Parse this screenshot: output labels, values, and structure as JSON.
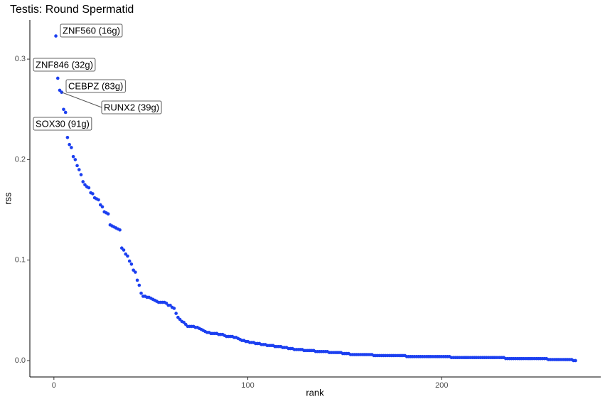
{
  "chart_data": {
    "type": "scatter",
    "title": "Testis: Round Spermatid",
    "x_label": "rank",
    "y_label": "rss",
    "color": "#1b3ff0",
    "xlim": [
      -12.4,
      282
    ],
    "ylim": [
      -0.0163,
      0.339
    ],
    "xticks": [
      0,
      100,
      200
    ],
    "yticks": [
      {
        "value": 0,
        "label": "0.0"
      },
      0.1,
      0.2,
      0.3
    ],
    "annotations": [
      "ZNF560 (16g)",
      "ZNF846 (32g)",
      "CEBPZ (83g)",
      "RUNX2 (39g)",
      "SOX30 (91g)"
    ],
    "x": [
      1,
      2,
      3,
      4,
      5,
      6,
      7,
      8,
      9,
      10,
      11,
      12,
      13,
      14,
      15,
      16,
      17,
      18,
      19,
      20,
      21,
      22,
      23,
      24,
      25,
      26,
      27,
      28,
      29,
      30,
      31,
      32,
      33,
      34,
      35,
      36,
      37,
      38,
      39,
      40,
      41,
      42,
      43,
      44,
      45,
      46,
      47,
      48,
      49,
      50,
      51,
      52,
      53,
      54,
      55,
      56,
      57,
      58,
      59,
      60,
      61,
      62,
      63,
      64,
      65,
      66,
      67,
      68,
      69,
      70,
      71,
      72,
      73,
      74,
      75,
      76,
      77,
      78,
      79,
      80,
      81,
      82,
      83,
      84,
      85,
      86,
      87,
      88,
      89,
      90,
      91,
      92,
      93,
      94,
      95,
      96,
      97,
      98,
      99,
      100,
      101,
      102,
      103,
      104,
      105,
      106,
      107,
      108,
      109,
      110,
      111,
      112,
      113,
      114,
      115,
      116,
      117,
      118,
      119,
      120,
      121,
      122,
      123,
      124,
      125,
      126,
      127,
      128,
      129,
      130,
      131,
      132,
      133,
      134,
      135,
      136,
      137,
      138,
      139,
      140,
      141,
      142,
      143,
      144,
      145,
      146,
      147,
      148,
      149,
      150,
      151,
      152,
      153,
      154,
      155,
      156,
      157,
      158,
      159,
      160,
      161,
      162,
      163,
      164,
      165,
      166,
      167,
      168,
      169,
      170,
      171,
      172,
      173,
      174,
      175,
      176,
      177,
      178,
      179,
      180,
      181,
      182,
      183,
      184,
      185,
      186,
      187,
      188,
      189,
      190,
      191,
      192,
      193,
      194,
      195,
      196,
      197,
      198,
      199,
      200,
      201,
      202,
      203,
      204,
      205,
      206,
      207,
      208,
      209,
      210,
      211,
      212,
      213,
      214,
      215,
      216,
      217,
      218,
      219,
      220,
      221,
      222,
      223,
      224,
      225,
      226,
      227,
      228,
      229,
      230,
      231,
      232,
      233,
      234,
      235,
      236,
      237,
      238,
      239,
      240,
      241,
      242,
      243,
      244,
      245,
      246,
      247,
      248,
      249,
      250,
      251,
      252,
      253,
      254,
      255,
      256,
      257,
      258,
      259,
      260,
      261,
      262,
      263,
      264,
      265,
      266,
      267,
      268,
      269
    ],
    "values": [
      0.323,
      0.281,
      0.269,
      0.267,
      0.25,
      0.247,
      0.222,
      0.215,
      0.212,
      0.203,
      0.2,
      0.194,
      0.19,
      0.185,
      0.178,
      0.175,
      0.173,
      0.172,
      0.167,
      0.166,
      0.162,
      0.161,
      0.16,
      0.155,
      0.153,
      0.148,
      0.147,
      0.146,
      0.135,
      0.134,
      0.133,
      0.132,
      0.131,
      0.13,
      0.112,
      0.11,
      0.106,
      0.104,
      0.099,
      0.096,
      0.09,
      0.088,
      0.08,
      0.075,
      0.067,
      0.064,
      0.064,
      0.063,
      0.063,
      0.062,
      0.061,
      0.06,
      0.059,
      0.058,
      0.058,
      0.058,
      0.058,
      0.057,
      0.055,
      0.055,
      0.053,
      0.052,
      0.047,
      0.043,
      0.041,
      0.039,
      0.038,
      0.036,
      0.034,
      0.034,
      0.034,
      0.034,
      0.033,
      0.033,
      0.032,
      0.031,
      0.03,
      0.029,
      0.028,
      0.028,
      0.027,
      0.027,
      0.027,
      0.027,
      0.026,
      0.026,
      0.026,
      0.025,
      0.024,
      0.024,
      0.024,
      0.024,
      0.023,
      0.023,
      0.022,
      0.021,
      0.02,
      0.02,
      0.019,
      0.019,
      0.018,
      0.018,
      0.018,
      0.017,
      0.017,
      0.017,
      0.016,
      0.016,
      0.016,
      0.015,
      0.015,
      0.015,
      0.015,
      0.014,
      0.014,
      0.014,
      0.014,
      0.013,
      0.013,
      0.013,
      0.012,
      0.012,
      0.012,
      0.011,
      0.011,
      0.011,
      0.011,
      0.011,
      0.01,
      0.01,
      0.01,
      0.01,
      0.01,
      0.01,
      0.009,
      0.009,
      0.009,
      0.009,
      0.009,
      0.009,
      0.009,
      0.008,
      0.008,
      0.008,
      0.008,
      0.008,
      0.008,
      0.008,
      0.007,
      0.007,
      0.007,
      0.007,
      0.006,
      0.006,
      0.006,
      0.006,
      0.006,
      0.006,
      0.006,
      0.006,
      0.006,
      0.006,
      0.006,
      0.006,
      0.005,
      0.005,
      0.005,
      0.005,
      0.005,
      0.005,
      0.005,
      0.005,
      0.005,
      0.005,
      0.005,
      0.005,
      0.005,
      0.005,
      0.005,
      0.005,
      0.005,
      0.004,
      0.004,
      0.004,
      0.004,
      0.004,
      0.004,
      0.004,
      0.004,
      0.004,
      0.004,
      0.004,
      0.004,
      0.004,
      0.004,
      0.004,
      0.004,
      0.004,
      0.004,
      0.004,
      0.004,
      0.004,
      0.004,
      0.004,
      0.003,
      0.003,
      0.003,
      0.003,
      0.003,
      0.003,
      0.003,
      0.003,
      0.003,
      0.003,
      0.003,
      0.003,
      0.003,
      0.003,
      0.003,
      0.003,
      0.003,
      0.003,
      0.003,
      0.003,
      0.003,
      0.003,
      0.003,
      0.003,
      0.003,
      0.003,
      0.003,
      0.003,
      0.002,
      0.002,
      0.002,
      0.002,
      0.002,
      0.002,
      0.002,
      0.002,
      0.002,
      0.002,
      0.002,
      0.002,
      0.002,
      0.002,
      0.002,
      0.002,
      0.002,
      0.002,
      0.002,
      0.002,
      0.002,
      0.002,
      0.001,
      0.001,
      0.001,
      0.001,
      0.001,
      0.001,
      0.001,
      0.001,
      0.001,
      0.001,
      0.001,
      0.001,
      0.001,
      0.0,
      0.0
    ]
  }
}
